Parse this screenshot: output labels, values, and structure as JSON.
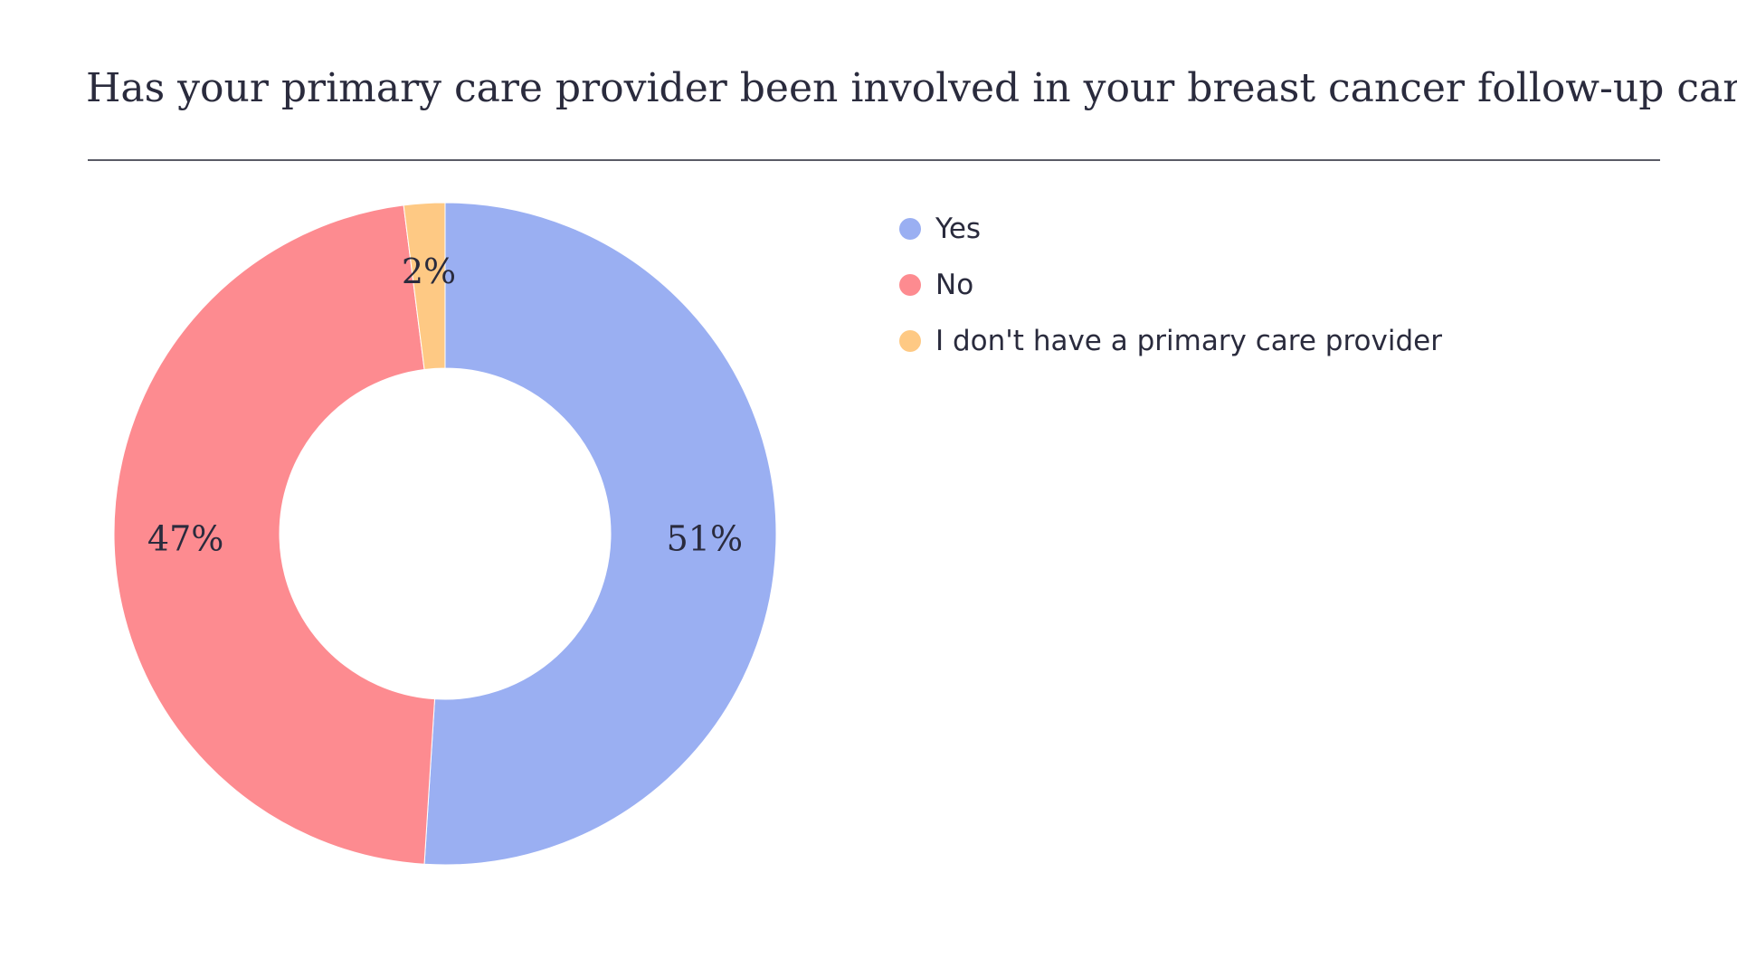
{
  "chart_data": {
    "type": "pie",
    "donut": true,
    "title": "Has your primary care provider been involved in your breast cancer follow-up care?",
    "legend_position": "right",
    "slices": [
      {
        "label": "Yes",
        "value": 51,
        "display": "51%",
        "color": "#9aaff2"
      },
      {
        "label": "No",
        "value": 47,
        "display": "47%",
        "color": "#fd8b90"
      },
      {
        "label": "I don't have a primary care provider",
        "value": 2,
        "display": "2%",
        "color": "#fec984"
      }
    ]
  }
}
